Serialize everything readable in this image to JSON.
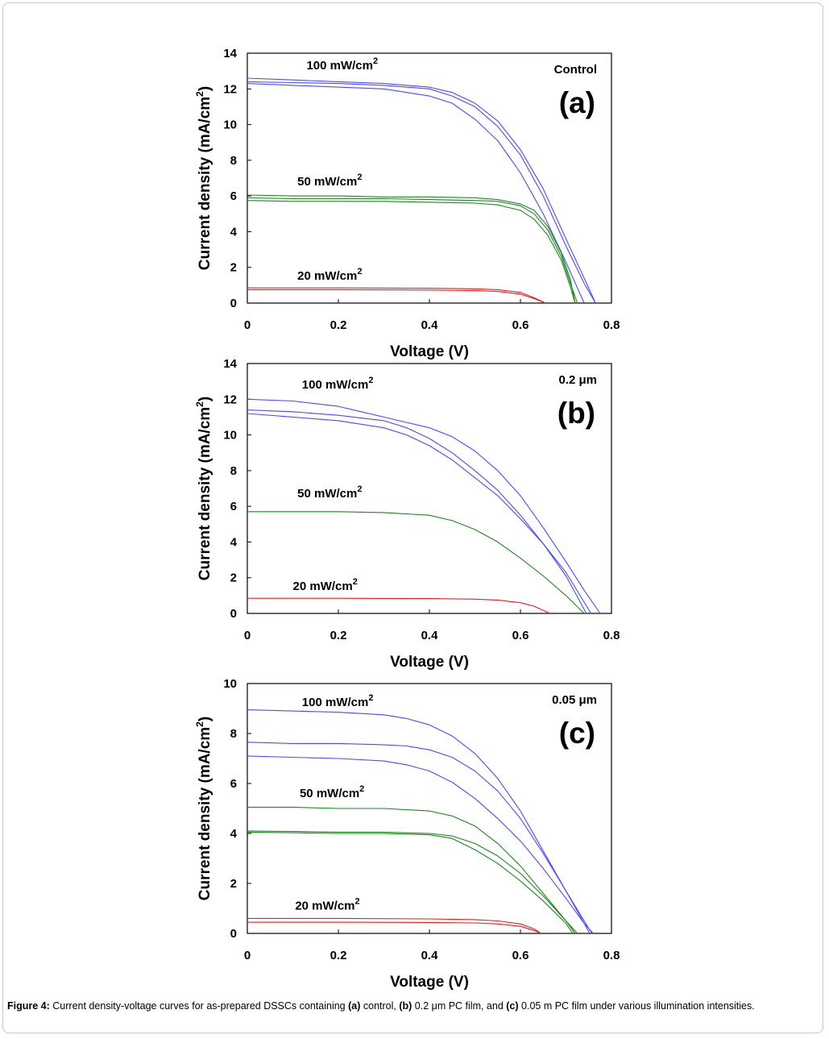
{
  "chart_data": [
    {
      "type": "line",
      "panel": "a",
      "tag": "(a)",
      "corner_label": "Control",
      "xlabel": "Voltage (V)",
      "ylabel": "Current density (mA/cm",
      "ylabel_sup": "2",
      "ylabel_close": ")",
      "xlim": [
        0,
        0.8
      ],
      "ylim": [
        0,
        14
      ],
      "xticks": [
        "0",
        "0.2",
        "0.4",
        "0.6",
        "0.8"
      ],
      "yticks": [
        "0",
        "2",
        "4",
        "6",
        "8",
        "10",
        "12",
        "14"
      ],
      "annotations": [
        {
          "text": "100 mW/cm",
          "sup": "2",
          "x": 0.13,
          "y": 13.1
        },
        {
          "text": "50 mW/cm",
          "sup": "2",
          "x": 0.11,
          "y": 6.6
        },
        {
          "text": "20 mW/cm",
          "sup": "2",
          "x": 0.11,
          "y": 1.3
        }
      ],
      "series": [
        {
          "name": "100 mW/cm2 (1)",
          "color": "#4a4aff",
          "x": [
            0,
            0.1,
            0.2,
            0.3,
            0.4,
            0.45,
            0.5,
            0.55,
            0.6,
            0.65,
            0.7,
            0.74,
            0.765
          ],
          "y": [
            12.6,
            12.5,
            12.4,
            12.3,
            12.1,
            11.8,
            11.2,
            10.2,
            8.6,
            6.4,
            3.6,
            1.4,
            0
          ]
        },
        {
          "name": "100 mW/cm2 (2)",
          "color": "#4a4aff",
          "x": [
            0,
            0.1,
            0.2,
            0.3,
            0.4,
            0.45,
            0.5,
            0.55,
            0.6,
            0.65,
            0.7,
            0.74,
            0.765
          ],
          "y": [
            12.4,
            12.35,
            12.3,
            12.2,
            12.0,
            11.6,
            11.0,
            9.9,
            8.3,
            6.0,
            3.2,
            1.1,
            0
          ]
        },
        {
          "name": "100 mW/cm2 (3)",
          "color": "#4a4aff",
          "x": [
            0,
            0.1,
            0.2,
            0.3,
            0.4,
            0.45,
            0.5,
            0.55,
            0.6,
            0.65,
            0.7,
            0.74
          ],
          "y": [
            12.3,
            12.2,
            12.1,
            12.0,
            11.6,
            11.2,
            10.3,
            9.1,
            7.3,
            5.0,
            2.3,
            0
          ]
        },
        {
          "name": "50 mW/cm2 (1)",
          "color": "#1a8a1a",
          "x": [
            0,
            0.1,
            0.2,
            0.3,
            0.4,
            0.5,
            0.55,
            0.6,
            0.63,
            0.66,
            0.69,
            0.71,
            0.72
          ],
          "y": [
            6.05,
            6.0,
            6.0,
            5.95,
            5.95,
            5.9,
            5.8,
            5.55,
            5.2,
            4.3,
            2.8,
            1.3,
            0
          ]
        },
        {
          "name": "50 mW/cm2 (2)",
          "color": "#1a8a1a",
          "x": [
            0,
            0.1,
            0.2,
            0.3,
            0.4,
            0.5,
            0.55,
            0.6,
            0.63,
            0.66,
            0.69,
            0.71,
            0.725
          ],
          "y": [
            5.9,
            5.85,
            5.85,
            5.85,
            5.8,
            5.75,
            5.7,
            5.45,
            5.0,
            4.1,
            2.6,
            1.1,
            0
          ]
        },
        {
          "name": "50 mW/cm2 (3)",
          "color": "#1a8a1a",
          "x": [
            0,
            0.1,
            0.2,
            0.3,
            0.4,
            0.5,
            0.55,
            0.6,
            0.63,
            0.66,
            0.69,
            0.71,
            0.72
          ],
          "y": [
            5.75,
            5.7,
            5.7,
            5.7,
            5.65,
            5.6,
            5.5,
            5.2,
            4.7,
            3.8,
            2.4,
            0.9,
            0
          ]
        },
        {
          "name": "20 mW/cm2 (1)",
          "color": "#e02020",
          "x": [
            0,
            0.2,
            0.4,
            0.5,
            0.55,
            0.6,
            0.63,
            0.655
          ],
          "y": [
            0.85,
            0.85,
            0.83,
            0.8,
            0.75,
            0.6,
            0.3,
            0
          ]
        },
        {
          "name": "20 mW/cm2 (2)",
          "color": "#e02020",
          "x": [
            0,
            0.2,
            0.4,
            0.5,
            0.55,
            0.6,
            0.63,
            0.655
          ],
          "y": [
            0.75,
            0.75,
            0.73,
            0.7,
            0.65,
            0.5,
            0.25,
            0
          ]
        }
      ]
    },
    {
      "type": "line",
      "panel": "b",
      "tag": "(b)",
      "corner_label": "0.2 μm",
      "xlabel": "Voltage (V)",
      "ylabel": "Current density (mA/cm",
      "ylabel_sup": "2",
      "ylabel_close": ")",
      "xlim": [
        0,
        0.8
      ],
      "ylim": [
        0,
        14
      ],
      "xticks": [
        "0",
        "0.2",
        "0.4",
        "0.6",
        "0.8"
      ],
      "yticks": [
        "0",
        "2",
        "4",
        "6",
        "8",
        "10",
        "12",
        "14"
      ],
      "annotations": [
        {
          "text": "100 mW/cm",
          "sup": "2",
          "x": 0.12,
          "y": 12.6
        },
        {
          "text": "50 mW/cm",
          "sup": "2",
          "x": 0.11,
          "y": 6.5
        },
        {
          "text": "20 mW/cm",
          "sup": "2",
          "x": 0.1,
          "y": 1.3
        }
      ],
      "series": [
        {
          "name": "100 mW/cm2 (1)",
          "color": "#4a4aff",
          "x": [
            0,
            0.1,
            0.2,
            0.25,
            0.3,
            0.35,
            0.4,
            0.45,
            0.5,
            0.55,
            0.6,
            0.65,
            0.7,
            0.74,
            0.775
          ],
          "y": [
            12.0,
            11.9,
            11.6,
            11.3,
            11.0,
            10.7,
            10.4,
            9.9,
            9.1,
            8.0,
            6.6,
            4.8,
            2.9,
            1.3,
            0
          ]
        },
        {
          "name": "100 mW/cm2 (2)",
          "color": "#4a4aff",
          "x": [
            0,
            0.1,
            0.2,
            0.3,
            0.35,
            0.4,
            0.45,
            0.5,
            0.55,
            0.6,
            0.65,
            0.7,
            0.745
          ],
          "y": [
            11.4,
            11.3,
            11.1,
            10.8,
            10.4,
            9.8,
            9.0,
            8.0,
            6.9,
            5.5,
            3.9,
            2.1,
            0
          ]
        },
        {
          "name": "100 mW/cm2 (3)",
          "color": "#4a4aff",
          "x": [
            0,
            0.1,
            0.2,
            0.3,
            0.35,
            0.4,
            0.45,
            0.5,
            0.55,
            0.6,
            0.65,
            0.7,
            0.755
          ],
          "y": [
            11.2,
            11.0,
            10.8,
            10.4,
            10.0,
            9.4,
            8.6,
            7.6,
            6.6,
            5.3,
            3.9,
            2.3,
            0
          ]
        },
        {
          "name": "50 mW/cm2",
          "color": "#1a8a1a",
          "x": [
            0,
            0.1,
            0.2,
            0.3,
            0.4,
            0.45,
            0.5,
            0.55,
            0.6,
            0.65,
            0.7,
            0.74
          ],
          "y": [
            5.7,
            5.7,
            5.7,
            5.65,
            5.5,
            5.2,
            4.7,
            4.0,
            3.1,
            2.1,
            1.0,
            0
          ]
        },
        {
          "name": "20 mW/cm2",
          "color": "#e02020",
          "x": [
            0,
            0.2,
            0.4,
            0.5,
            0.55,
            0.6,
            0.63,
            0.665
          ],
          "y": [
            0.85,
            0.85,
            0.83,
            0.8,
            0.75,
            0.6,
            0.4,
            0
          ]
        }
      ]
    },
    {
      "type": "line",
      "panel": "c",
      "tag": "(c)",
      "corner_label": "0.05 μm",
      "xlabel": "Voltage (V)",
      "ylabel": "Current density (mA/cm",
      "ylabel_sup": "2",
      "ylabel_close": ")",
      "xlim": [
        0,
        0.8
      ],
      "ylim": [
        0,
        10
      ],
      "xticks": [
        "0",
        "0.2",
        "0.4",
        "0.6",
        "0.8"
      ],
      "yticks": [
        "0",
        "2",
        "4",
        "6",
        "8",
        "10"
      ],
      "annotations": [
        {
          "text": "100 mW/cm",
          "sup": "2",
          "x": 0.12,
          "y": 9.1
        },
        {
          "text": "50 mW/cm",
          "sup": "2",
          "x": 0.115,
          "y": 5.45
        },
        {
          "text": "20 mW/cm",
          "sup": "2",
          "x": 0.105,
          "y": 0.95
        }
      ],
      "series": [
        {
          "name": "100 mW/cm2 (1)",
          "color": "#4a4aff",
          "x": [
            0,
            0.1,
            0.2,
            0.3,
            0.35,
            0.4,
            0.45,
            0.5,
            0.55,
            0.6,
            0.65,
            0.7,
            0.74,
            0.757
          ],
          "y": [
            8.95,
            8.9,
            8.85,
            8.75,
            8.6,
            8.35,
            7.9,
            7.2,
            6.2,
            4.9,
            3.3,
            1.7,
            0.5,
            0
          ]
        },
        {
          "name": "100 mW/cm2 (2)",
          "color": "#4a4aff",
          "x": [
            0,
            0.1,
            0.2,
            0.3,
            0.35,
            0.4,
            0.45,
            0.5,
            0.55,
            0.6,
            0.65,
            0.7,
            0.74,
            0.752
          ],
          "y": [
            7.65,
            7.6,
            7.6,
            7.55,
            7.5,
            7.35,
            7.05,
            6.5,
            5.7,
            4.6,
            3.2,
            1.7,
            0.4,
            0
          ]
        },
        {
          "name": "100 mW/cm2 (3)",
          "color": "#4a4aff",
          "x": [
            0,
            0.1,
            0.2,
            0.3,
            0.35,
            0.4,
            0.45,
            0.5,
            0.55,
            0.6,
            0.65,
            0.7,
            0.74,
            0.76
          ],
          "y": [
            7.1,
            7.05,
            7.0,
            6.9,
            6.75,
            6.5,
            6.05,
            5.4,
            4.6,
            3.7,
            2.6,
            1.4,
            0.4,
            0
          ]
        },
        {
          "name": "50 mW/cm2 (1)",
          "color": "#1a8a1a",
          "x": [
            0,
            0.1,
            0.2,
            0.3,
            0.4,
            0.45,
            0.5,
            0.55,
            0.6,
            0.65,
            0.7,
            0.725
          ],
          "y": [
            5.05,
            5.05,
            5.0,
            5.0,
            4.9,
            4.7,
            4.3,
            3.6,
            2.7,
            1.6,
            0.5,
            0
          ]
        },
        {
          "name": "50 mW/cm2 (2)",
          "color": "#1a8a1a",
          "x": [
            0,
            0.1,
            0.2,
            0.3,
            0.4,
            0.45,
            0.5,
            0.55,
            0.6,
            0.65,
            0.7,
            0.72
          ],
          "y": [
            4.1,
            4.08,
            4.05,
            4.05,
            4.0,
            3.9,
            3.6,
            3.1,
            2.4,
            1.5,
            0.5,
            0
          ]
        },
        {
          "name": "50 mW/cm2 (3)",
          "color": "#1a8a1a",
          "x": [
            0,
            0.1,
            0.2,
            0.3,
            0.4,
            0.45,
            0.5,
            0.55,
            0.6,
            0.65,
            0.7,
            0.715
          ],
          "y": [
            4.05,
            4.03,
            4.0,
            4.0,
            3.95,
            3.8,
            3.35,
            2.8,
            2.1,
            1.3,
            0.4,
            0
          ]
        },
        {
          "name": "20 mW/cm2 (1)",
          "color": "#e02020",
          "x": [
            0,
            0.2,
            0.4,
            0.5,
            0.55,
            0.6,
            0.63,
            0.645
          ],
          "y": [
            0.6,
            0.6,
            0.58,
            0.55,
            0.5,
            0.38,
            0.18,
            0
          ]
        },
        {
          "name": "20 mW/cm2 (2)",
          "color": "#e02020",
          "x": [
            0,
            0.2,
            0.4,
            0.5,
            0.55,
            0.6,
            0.63,
            0.645
          ],
          "y": [
            0.45,
            0.45,
            0.44,
            0.42,
            0.38,
            0.28,
            0.12,
            0
          ]
        }
      ]
    }
  ],
  "caption": {
    "label": "Figure 4:",
    "part1": " Current density-voltage curves for as-prepared DSSCs containing ",
    "a": "(a)",
    "part2": " control, ",
    "b": "(b)",
    "part3": " 0.2 μm PC film, and ",
    "c": "(c)",
    "part4": " 0.05 m PC film under various illumination intensities."
  }
}
